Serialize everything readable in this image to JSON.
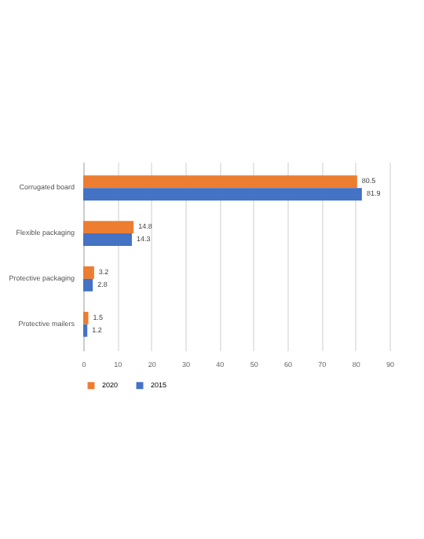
{
  "chart_data": {
    "type": "bar",
    "orientation": "horizontal",
    "categories": [
      "Corrugated board",
      "Flexible packaging",
      "Protective packaging",
      "Protective mailers"
    ],
    "series": [
      {
        "name": "2020",
        "color": "#ed7d31",
        "values": [
          80.5,
          14.8,
          3.2,
          1.5
        ]
      },
      {
        "name": "2015",
        "color": "#4472c4",
        "values": [
          81.9,
          14.3,
          2.8,
          1.2
        ]
      }
    ],
    "xlim": [
      0,
      90
    ],
    "xticks": [
      0,
      10,
      20,
      30,
      40,
      50,
      60,
      70,
      80,
      90
    ],
    "data_labels": true,
    "grid": "x",
    "legend": "bottom"
  }
}
